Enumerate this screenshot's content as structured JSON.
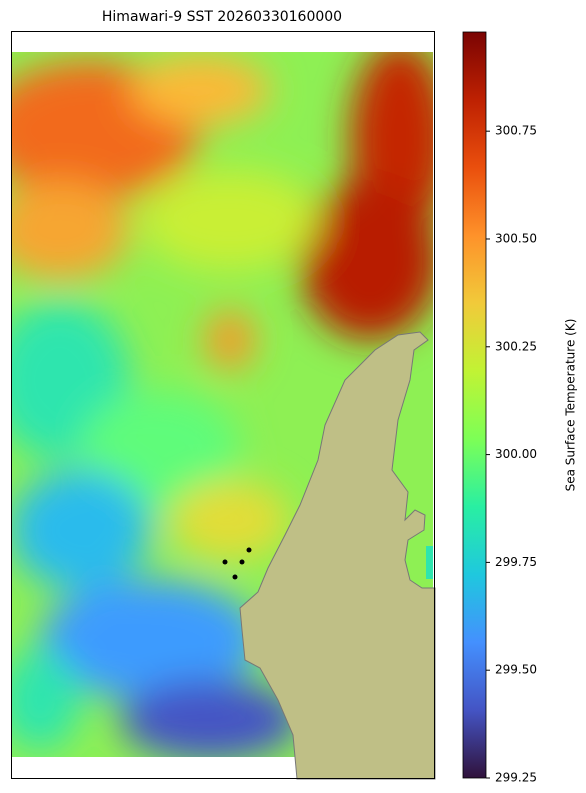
{
  "chart_data": {
    "type": "heatmap",
    "title": "Himawari-9 SST 20260330160000",
    "colorbar_label": "Sea Surface Temperature (K)",
    "colormap": "turbo",
    "clim": [
      299.25,
      300.98
    ],
    "cticks": [
      299.25,
      {
        "value": 299.5,
        "label": "299.50"
      },
      299.75,
      {
        "value": 300,
        "label": "300.00"
      },
      300.25,
      {
        "value": 300.5,
        "label": "300.50"
      },
      300.75
    ]
  }
}
